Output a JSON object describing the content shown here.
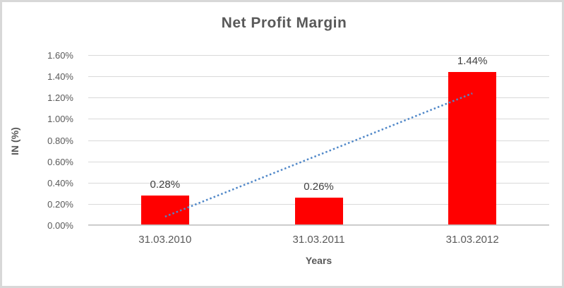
{
  "chart_data": {
    "type": "bar",
    "title": "Net Profit Margin",
    "xlabel": "Years",
    "ylabel": "IN (%)",
    "categories": [
      "31.03.2010",
      "31.03.2011",
      "31.03.2012"
    ],
    "values": [
      0.28,
      0.26,
      1.44
    ],
    "data_labels": [
      "0.28%",
      "0.26%",
      "1.44%"
    ],
    "ylim": [
      0,
      1.6
    ],
    "ytick_step": 0.2,
    "ytick_labels": [
      "0.00%",
      "0.20%",
      "0.40%",
      "0.60%",
      "0.80%",
      "1.00%",
      "1.20%",
      "1.40%",
      "1.60%"
    ],
    "grid": true,
    "legend": "none",
    "bar_color": "#ff0000",
    "trendline": {
      "style": "dotted",
      "color": "#4f87c8",
      "start_value": 0.08,
      "end_value": 1.24
    },
    "text_color": "#595959",
    "data_label_color": "#404040",
    "gridline_color": "#d9d9d9",
    "frame_color": "#d8d8d8"
  }
}
